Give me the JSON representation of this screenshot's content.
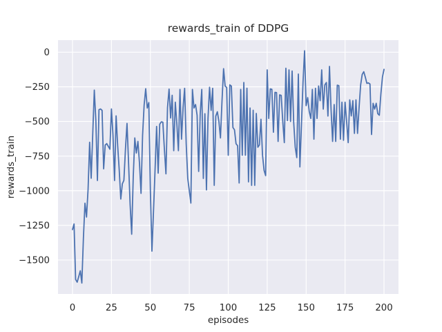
{
  "title": "rewards_train of DDPG",
  "x_axis": {
    "label": "episodes",
    "ticks": [
      0,
      25,
      50,
      75,
      100,
      125,
      150,
      175,
      200
    ]
  },
  "y_axis": {
    "label": "rewards_train",
    "ticks": [
      0,
      -250,
      -500,
      -750,
      -1000,
      -1250,
      -1500
    ]
  },
  "colors": {
    "figure_bg": "#ffffff",
    "axes_bg": "#eaeaf2",
    "grid": "#ffffff",
    "line": "#4c72b0",
    "text": "#262626"
  },
  "chart_data": {
    "type": "line",
    "title": "rewards_train of DDPG",
    "xlabel": "episodes",
    "ylabel": "rewards_train",
    "x_ticks": [
      0,
      25,
      50,
      75,
      100,
      125,
      150,
      175,
      200
    ],
    "y_ticks": [
      0,
      -250,
      -500,
      -750,
      -1000,
      -1250,
      -1500
    ],
    "xlim": [
      -9.3,
      209.3
    ],
    "ylim": [
      -1745,
      87
    ],
    "grid": true,
    "legend_position": "none",
    "series": [
      {
        "name": "rewards_train",
        "color": "#4c72b0",
        "x_start": 0,
        "x_step": 1,
        "values": [
          -1280,
          -1240,
          -1640,
          -1660,
          -1620,
          -1578,
          -1666,
          -1344,
          -1090,
          -1190,
          -990,
          -650,
          -910,
          -590,
          -274,
          -495,
          -926,
          -415,
          -410,
          -420,
          -842,
          -670,
          -660,
          -680,
          -700,
          -410,
          -600,
          -926,
          -460,
          -675,
          -850,
          -1060,
          -950,
          -925,
          -700,
          -514,
          -800,
          -1100,
          -1314,
          -900,
          -619,
          -728,
          -644,
          -800,
          -1019,
          -600,
          -380,
          -264,
          -403,
          -364,
          -1000,
          -1436,
          -1150,
          -853,
          -536,
          -873,
          -520,
          -503,
          -505,
          -700,
          -878,
          -400,
          -266,
          -475,
          -311,
          -711,
          -361,
          -519,
          -711,
          -269,
          -628,
          -400,
          -261,
          -661,
          -911,
          -1000,
          -1089,
          -269,
          -403,
          -378,
          -455,
          -861,
          -444,
          -269,
          -911,
          -444,
          -994,
          -478,
          -253,
          -420,
          -261,
          -961,
          -461,
          -430,
          -500,
          -619,
          -350,
          -119,
          -245,
          -255,
          -744,
          -236,
          -245,
          -544,
          -560,
          -661,
          -675,
          -944,
          -269,
          -744,
          -219,
          -744,
          -260,
          -936,
          -403,
          -961,
          -419,
          -961,
          -442,
          -686,
          -669,
          -484,
          -744,
          -853,
          -891,
          -128,
          -478,
          -265,
          -268,
          -578,
          -290,
          -292,
          -644,
          -308,
          -312,
          -500,
          -653,
          -116,
          -494,
          -128,
          -500,
          -136,
          -503,
          -686,
          -761,
          -158,
          -828,
          -520,
          -219,
          10,
          -386,
          -328,
          -428,
          -478,
          -269,
          -628,
          -261,
          -478,
          -244,
          -350,
          -128,
          -411,
          -236,
          -219,
          -461,
          -103,
          -411,
          -644,
          -378,
          -644,
          -238,
          -242,
          -628,
          -361,
          -636,
          -361,
          -500,
          -653,
          -344,
          -460,
          -350,
          -586,
          -344,
          -586,
          -400,
          -236,
          -161,
          -141,
          -180,
          -225,
          -222,
          -230,
          -594,
          -369,
          -411,
          -369,
          -444,
          -455,
          -300,
          -180,
          -124
        ]
      }
    ]
  }
}
